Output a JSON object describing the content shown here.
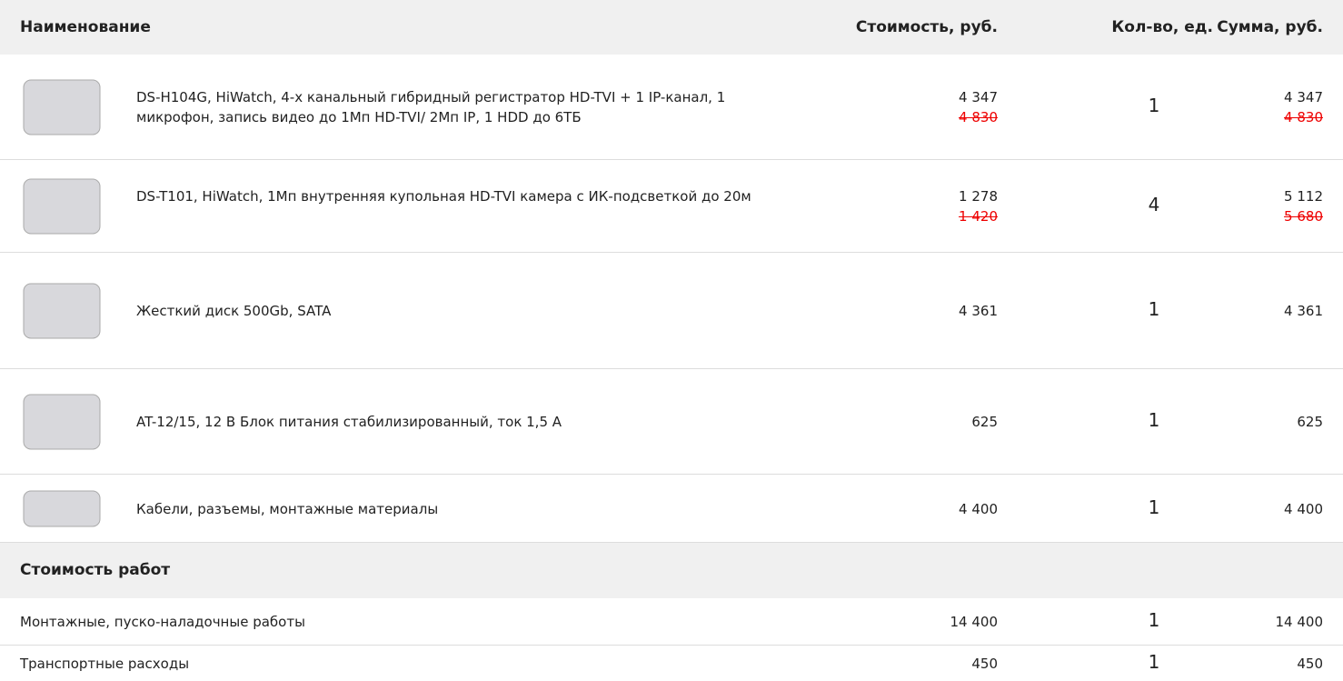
{
  "header": {
    "name": "Наименование",
    "cost": "Стоимость, руб.",
    "qty": "Кол-во, ед.",
    "sum": "Сумма, руб."
  },
  "items": [
    {
      "name": "DS-H104G, HiWatch, 4-х канальный гибридный регистратор HD-TVI + 1 IP-канал, 1 микрофон, запись видео до 1Мп HD-TVI/ 2Мп IP, 1 HDD до 6ТБ",
      "cost": "4 347",
      "old_cost": "4 830",
      "qty": 1,
      "sum": "4 347",
      "old_sum": "4 830"
    },
    {
      "name": "DS-T101, HiWatch, 1Мп внутренняя купольная HD-TVI камера с ИК-подсветкой до 20м",
      "cost": "1 278",
      "old_cost": "1 420",
      "qty": 4,
      "sum": "5 112",
      "old_sum": "5 680"
    },
    {
      "name": "Жесткий диск 500Gb, SATA",
      "cost": "4 361",
      "qty": 1,
      "sum": "4 361"
    },
    {
      "name": "AT-12/15, 12 В Блок питания стабилизированный, ток 1,5 А",
      "cost": "625",
      "qty": 1,
      "sum": "625"
    },
    {
      "name": "Кабели, разъемы, монтажные материалы",
      "cost": "4 400",
      "qty": 1,
      "sum": "4 400"
    }
  ],
  "section": {
    "title": "Стоимость работ",
    "items": [
      {
        "name": "Монтажные, пуско-наладочные работы",
        "cost": "14 400",
        "qty": 1,
        "sum": "14 400"
      },
      {
        "name": "Транспортные расходы",
        "cost": "450",
        "qty": 1,
        "sum": "450"
      }
    ]
  }
}
